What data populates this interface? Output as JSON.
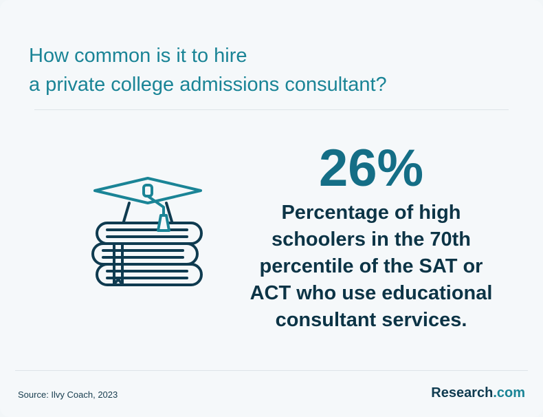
{
  "title": {
    "line1": "How common is it to hire",
    "line2": "a private college admissions consultant?"
  },
  "stat": {
    "value": "26%",
    "description": "Percentage of high schoolers in the 70th percentile of the SAT or ACT who use educational consultant services."
  },
  "footer": {
    "source": "Source: Ilvy Coach, 2023",
    "brand_name": "Research",
    "brand_suffix": ".com"
  },
  "icon": "graduation-cap-books-icon",
  "colors": {
    "title": "#1a8496",
    "stat_value": "#146e86",
    "stat_text": "#0c3446",
    "icon_stroke": "#0f3b50",
    "icon_accent": "#1a8496"
  }
}
